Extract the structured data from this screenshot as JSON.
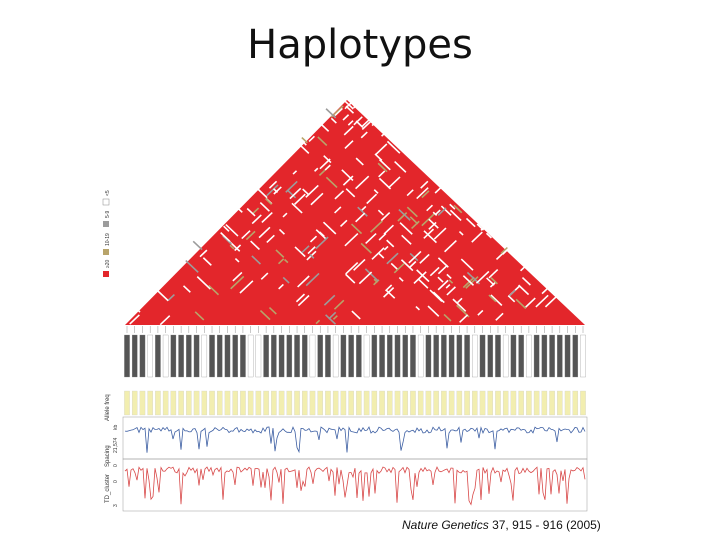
{
  "slide": {
    "title": "Haplotypes"
  },
  "citation": {
    "journal": "Nature Genetics",
    "details": "37, 915 - 916 (2005)"
  },
  "figure": {
    "legend_items": [
      "≥20",
      "10-19",
      "5-9",
      "<5"
    ],
    "track_labels": [
      "Allele freq",
      "Spacing",
      "TD_cluster"
    ],
    "spacing_axis_ticks": [
      "0",
      "21,574",
      "kb"
    ],
    "td_axis_ticks": [
      "3",
      "0"
    ],
    "colors": {
      "ld_red": "#e3262b",
      "ld_tan": "#b8a46a",
      "ld_gray": "#9c9c9c",
      "allele_bar": "#f2eeb0",
      "marker_dark": "#555555",
      "spacing_line": "#3d5fa3",
      "td_line": "#d84848"
    }
  }
}
